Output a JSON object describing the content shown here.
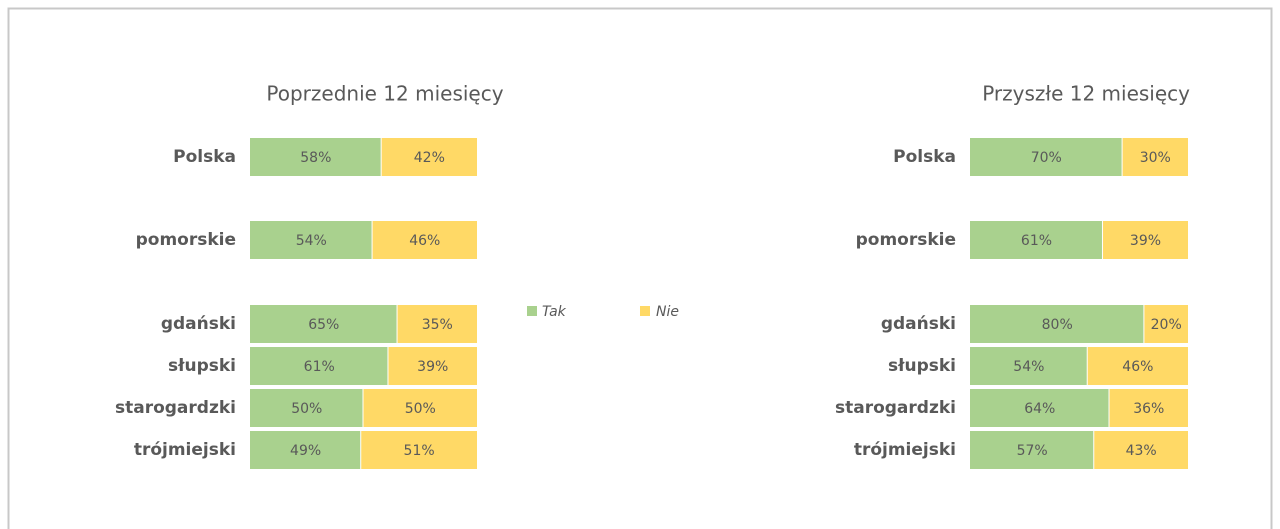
{
  "chart_data": [
    {
      "type": "bar",
      "orientation": "horizontal",
      "stacked": true,
      "title": "Poprzednie 12 miesięcy",
      "categories": [
        "Polska",
        "pomorskie",
        "gdański",
        "słupski",
        "starogardzki",
        "trójmiejski"
      ],
      "xlim": [
        0,
        100
      ],
      "series": [
        {
          "name": "Tak",
          "color": "#a9d18e",
          "values": [
            58,
            54,
            65,
            61,
            50,
            49
          ],
          "value_labels": [
            "58%",
            "54%",
            "65%",
            "61%",
            "50%",
            "49%"
          ]
        },
        {
          "name": "Nie",
          "color": "#ffd966",
          "values": [
            42,
            46,
            35,
            39,
            50,
            51
          ],
          "value_labels": [
            "42%",
            "46%",
            "35%",
            "39%",
            "50%",
            "51%"
          ]
        }
      ]
    },
    {
      "type": "bar",
      "orientation": "horizontal",
      "stacked": true,
      "title": "Przyszłe 12 miesięcy",
      "categories": [
        "Polska",
        "pomorskie",
        "gdański",
        "słupski",
        "starogardzki",
        "trójmiejski"
      ],
      "xlim": [
        0,
        100
      ],
      "series": [
        {
          "name": "Tak",
          "color": "#a9d18e",
          "values": [
            70,
            61,
            80,
            54,
            64,
            57
          ],
          "value_labels": [
            "70%",
            "61%",
            "80%",
            "54%",
            "64%",
            "57%"
          ]
        },
        {
          "name": "Nie",
          "color": "#ffd966",
          "values": [
            30,
            39,
            20,
            46,
            36,
            43
          ],
          "value_labels": [
            "30%",
            "39%",
            "20%",
            "46%",
            "36%",
            "43%"
          ]
        }
      ]
    }
  ]
}
